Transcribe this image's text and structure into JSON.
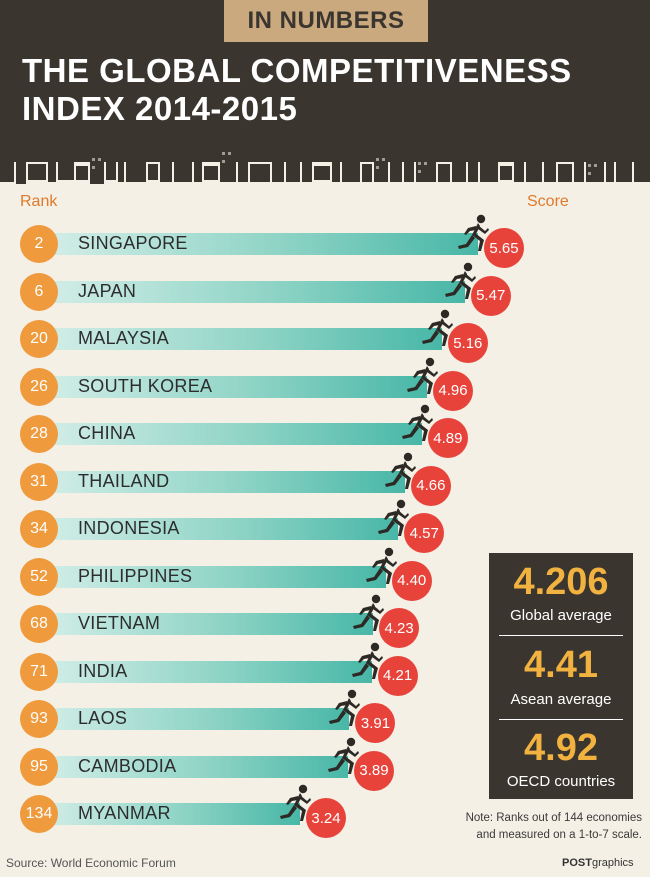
{
  "header": {
    "tag": "IN NUMBERS",
    "title_line1": "THE GLOBAL COMPETITIVENESS",
    "title_line2": "INDEX 2014-2015"
  },
  "columns": {
    "rank_label": "Rank",
    "score_label": "Score"
  },
  "chart_data": {
    "type": "bar",
    "categories": [
      "SINGAPORE",
      "JAPAN",
      "MALAYSIA",
      "SOUTH KOREA",
      "CHINA",
      "THAILAND",
      "INDONESIA",
      "PHILIPPINES",
      "VIETNAM",
      "INDIA",
      "LAOS",
      "CAMBODIA",
      "MYANMAR"
    ],
    "ranks": [
      2,
      6,
      20,
      26,
      28,
      31,
      34,
      52,
      68,
      71,
      93,
      95,
      134
    ],
    "values": [
      5.65,
      5.47,
      5.16,
      4.96,
      4.89,
      4.66,
      4.57,
      4.4,
      4.23,
      4.21,
      3.91,
      3.89,
      3.24
    ],
    "score_labels": [
      "5.65",
      "5.47",
      "5.16",
      "4.96",
      "4.89",
      "4.66",
      "4.57",
      "4.40",
      "4.23",
      "4.21",
      "3.91",
      "3.89",
      "3.24"
    ]
  },
  "averages": [
    {
      "value": "4.206",
      "label": "Global average"
    },
    {
      "value": "4.41",
      "label": "Asean average"
    },
    {
      "value": "4.92",
      "label": "OECD countries"
    }
  ],
  "note": {
    "line1": "Note: Ranks out of 144 economies",
    "line2": "and measured on a 1-to-7 scale."
  },
  "source": "Source: World Economic Forum",
  "credit": {
    "bold": "POST",
    "rest": "graphics"
  },
  "colors": {
    "header_bg": "#3b3530",
    "rank": "#ef9a3d",
    "score": "#e8433b",
    "bar": "#48b7a7",
    "avg_value": "#f2b23f",
    "page_bg": "#f4f0e6"
  }
}
